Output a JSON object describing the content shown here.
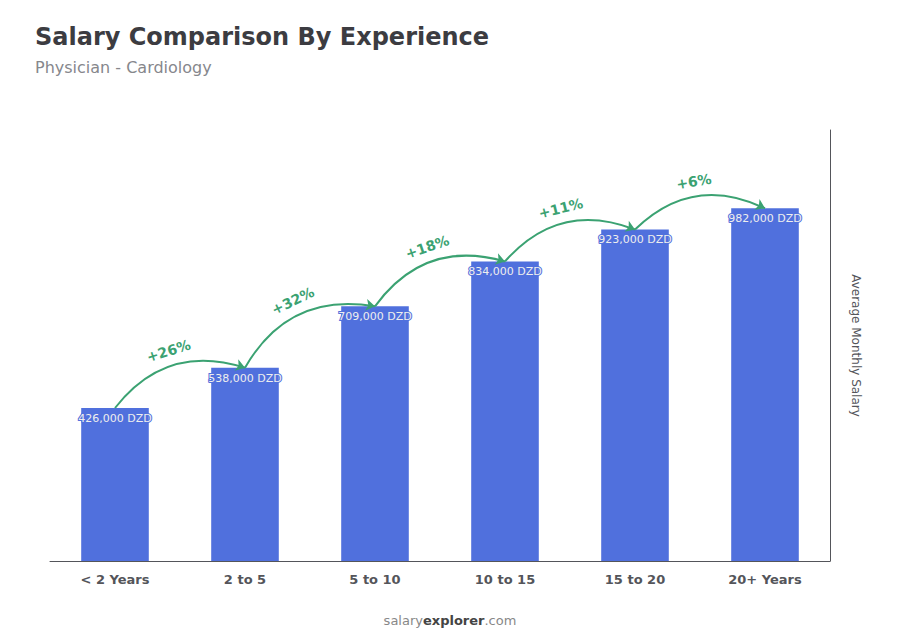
{
  "chart_data": {
    "type": "bar",
    "title": "Salary Comparison By Experience",
    "subtitle": "Physician - Cardiology",
    "ylabel": "Average Monthly Salary",
    "watermark": [
      "salary",
      "explorer",
      ".com"
    ],
    "categories": [
      "< 2 Years",
      "2 to 5",
      "5 to 10",
      "10 to 15",
      "15 to 20",
      "20+ Years"
    ],
    "values": [
      426000,
      538000,
      709000,
      834000,
      923000,
      982000
    ],
    "value_labels": [
      "426,000 DZD",
      "538,000 DZD",
      "709,000 DZD",
      "834,000 DZD",
      "923,000 DZD",
      "982,000 DZD"
    ],
    "increases": {
      "color": "#3ba272",
      "labels": [
        null,
        "+26%",
        "+32%",
        "+18%",
        "+11%",
        "+6%"
      ]
    },
    "data_labels": true,
    "ylim": [
      0,
      1200000
    ],
    "tick_labels": "x",
    "grid": false
  }
}
